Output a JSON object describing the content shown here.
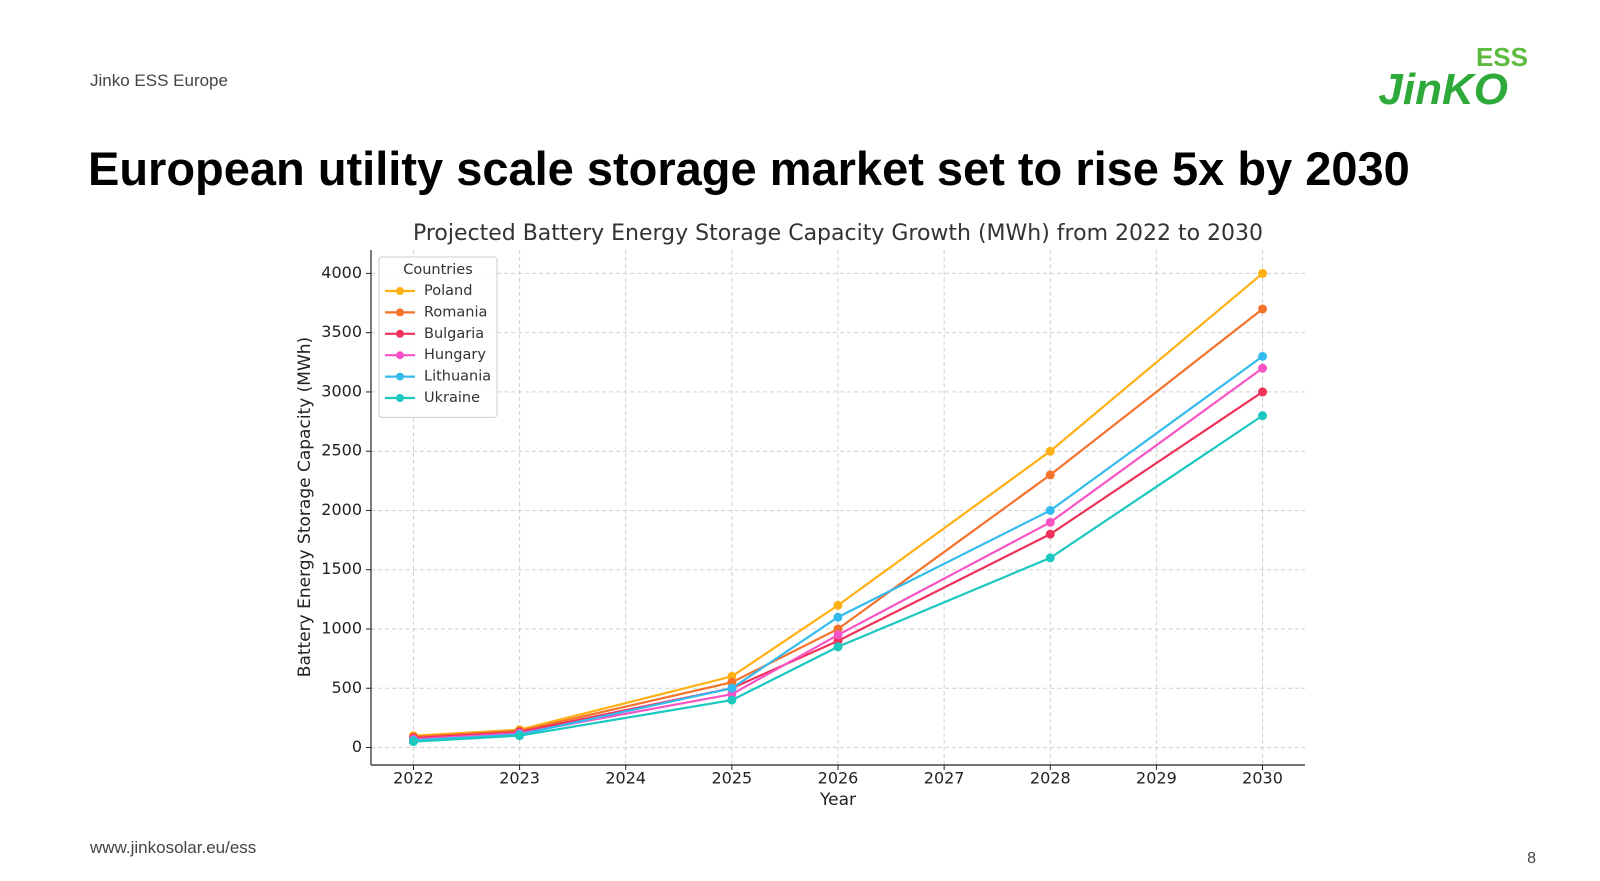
{
  "header": {
    "company": "Jinko ESS Europe",
    "logo_top": "ESS",
    "logo_main": "JinKO",
    "title": "European utility scale storage market set to rise 5x by 2030"
  },
  "footer": {
    "url": "www.jinkosolar.eu/ess",
    "page_number": "8"
  },
  "chart_data": {
    "type": "line",
    "title": "Projected Battery Energy Storage Capacity Growth (MWh) from 2022 to 2030",
    "x_label": "Year",
    "y_label": "Battery Energy Storage Capacity (MWh)",
    "x": [
      2022,
      2023,
      2025,
      2026,
      2028,
      2030
    ],
    "xlim": [
      2021.6,
      2030.4
    ],
    "xticks": [
      2022,
      2023,
      2024,
      2025,
      2026,
      2027,
      2028,
      2029,
      2030
    ],
    "ylim": [
      -147.5,
      4197.5
    ],
    "yticks": [
      0,
      500,
      1000,
      1500,
      2000,
      2500,
      3000,
      3500,
      4000
    ],
    "grid": true,
    "legend_title": "Countries",
    "legend_position": "upper left",
    "series": [
      {
        "name": "Poland",
        "color": "#ffb012",
        "values": [
          100,
          150,
          600,
          1200,
          2500,
          4000
        ]
      },
      {
        "name": "Romania",
        "color": "#f4722b",
        "values": [
          90,
          140,
          550,
          1000,
          2300,
          3700
        ]
      },
      {
        "name": "Bulgaria",
        "color": "#f0325a",
        "values": [
          80,
          130,
          500,
          900,
          1800,
          3000
        ]
      },
      {
        "name": "Hungary",
        "color": "#f754c6",
        "values": [
          70,
          120,
          450,
          950,
          1900,
          3200
        ]
      },
      {
        "name": "Lithuania",
        "color": "#33bbee",
        "values": [
          60,
          110,
          500,
          1100,
          2000,
          3300
        ]
      },
      {
        "name": "Ukraine",
        "color": "#1cc7c0",
        "values": [
          50,
          100,
          400,
          850,
          1600,
          2800
        ]
      }
    ]
  }
}
